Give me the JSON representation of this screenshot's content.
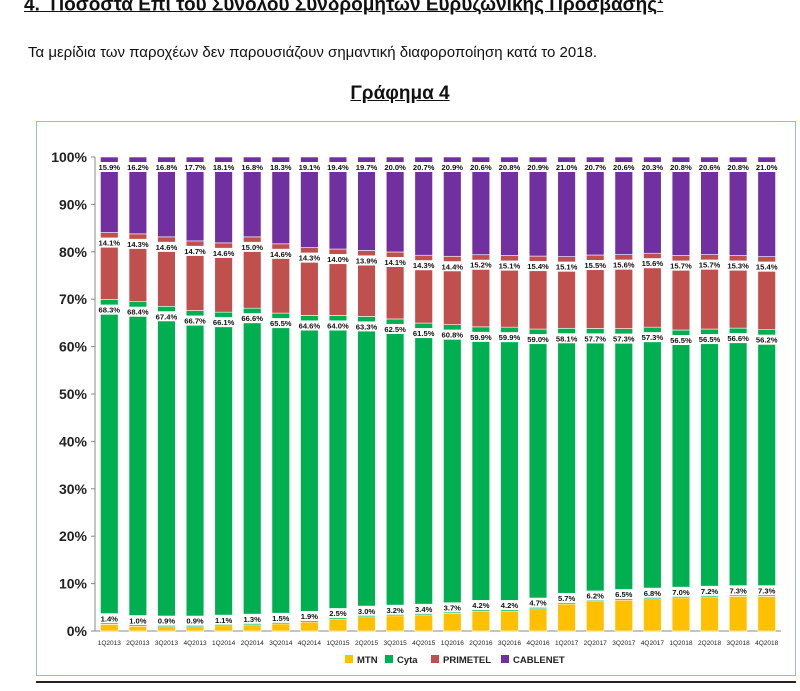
{
  "page": {
    "heading_number": "4.",
    "heading_text": "Ποσοστά Επί του Συνόλου Συνδρομητών Ευρυζωνικής Πρόσβασης",
    "heading_sup": "1",
    "intro": "Τα μερίδια των παροχέων δεν παρουσιάζουν σημαντική διαφοροποίηση κατά το 2018.",
    "chart_title": "Γράφημα 4"
  },
  "chart_data": {
    "type": "bar",
    "stacked": "percent",
    "categories": [
      "1Q2013",
      "2Q2013",
      "3Q2013",
      "4Q2013",
      "1Q2014",
      "2Q2014",
      "3Q2014",
      "4Q2014",
      "1Q2015",
      "2Q2015",
      "3Q2015",
      "4Q2015",
      "1Q2016",
      "2Q2016",
      "3Q2016",
      "4Q2016",
      "1Q2017",
      "2Q2017",
      "3Q2017",
      "4Q2017",
      "1Q2018",
      "2Q2018",
      "3Q2018",
      "4Q2018"
    ],
    "series": [
      {
        "name": "MTN",
        "color": "#ffc000",
        "values": [
          1.4,
          1.0,
          0.9,
          0.9,
          1.1,
          1.3,
          1.5,
          1.9,
          2.5,
          3.0,
          3.2,
          3.4,
          3.7,
          4.2,
          4.2,
          4.7,
          5.7,
          6.2,
          6.5,
          6.8,
          7.0,
          7.2,
          7.3,
          7.3
        ],
        "labels": [
          "1.4%",
          "1.0%",
          "0.9%",
          "0.9%",
          "1.1%",
          "1.3%",
          "1.5%",
          "1.9%",
          "2.5%",
          "3.0%",
          "3.2%",
          "3.4%",
          "3.7%",
          "4.2%",
          "4.2%",
          "4.7%",
          "5.7%",
          "6.2%",
          "6.5%",
          "6.8%",
          "7.0%",
          "7.2%",
          "7.3%",
          "7.3%"
        ]
      },
      {
        "name": "Cyta",
        "color": "#00b050",
        "values": [
          68.3,
          68.4,
          67.4,
          66.7,
          66.1,
          66.6,
          65.5,
          64.6,
          64.0,
          63.3,
          62.5,
          61.5,
          60.8,
          59.9,
          59.9,
          59.0,
          58.1,
          57.7,
          57.3,
          57.3,
          56.5,
          56.5,
          56.6,
          56.2
        ],
        "labels": [
          "68.3%",
          "68.4%",
          "67.4%",
          "66.7%",
          "66.1%",
          "66.6%",
          "65.5%",
          "64.6%",
          "64.0%",
          "63.3%",
          "62.5%",
          "61.5%",
          "60.8%",
          "59.9%",
          "59.9%",
          "59.0%",
          "58.1%",
          "57.7%",
          "57.3%",
          "57.3%",
          "56.5%",
          "56.5%",
          "56.6%",
          "56.2%"
        ]
      },
      {
        "name": "PRIMETEL",
        "color": "#c0504d",
        "values": [
          14.1,
          14.3,
          14.6,
          14.7,
          14.6,
          15.0,
          14.6,
          14.3,
          14.0,
          13.9,
          14.1,
          14.3,
          14.4,
          15.2,
          15.1,
          15.4,
          15.1,
          15.5,
          15.6,
          15.6,
          15.7,
          15.7,
          15.3,
          15.4
        ],
        "labels": [
          "14.1%",
          "14.3%",
          "14.6%",
          "14.7%",
          "14.6%",
          "15.0%",
          "14.6%",
          "14.3%",
          "14.0%",
          "13.9%",
          "14.1%",
          "14.3%",
          "14.4%",
          "15.2%",
          "15.1%",
          "15.4%",
          "15.1%",
          "15.5%",
          "15.6%",
          "15.6%",
          "15.7%",
          "15.7%",
          "15.3%",
          "15.4%"
        ]
      },
      {
        "name": "CABLENET",
        "color": "#7030a0",
        "values": [
          15.9,
          16.2,
          16.8,
          17.7,
          18.1,
          16.8,
          18.3,
          19.1,
          19.4,
          19.7,
          20.0,
          20.7,
          20.9,
          20.6,
          20.8,
          20.9,
          21.0,
          20.7,
          20.6,
          20.3,
          20.8,
          20.6,
          20.8,
          21.0
        ],
        "labels": [
          "15.9%",
          "16.2%",
          "16.8%",
          "17.7%",
          "18.1%",
          "16.8%",
          "18.3%",
          "19.1%",
          "19.4%",
          "19.7%",
          "20.0%",
          "20.7%",
          "20.9%",
          "20.6%",
          "20.8%",
          "20.9%",
          "21.0%",
          "20.7%",
          "20.6%",
          "20.3%",
          "20.8%",
          "20.6%",
          "20.8%",
          "21.0%"
        ]
      }
    ],
    "y_ticks": [
      "0%",
      "10%",
      "20%",
      "30%",
      "40%",
      "50%",
      "60%",
      "70%",
      "80%",
      "90%",
      "100%"
    ],
    "ylim": [
      0,
      100
    ],
    "grid": false,
    "legend_position": "bottom"
  }
}
